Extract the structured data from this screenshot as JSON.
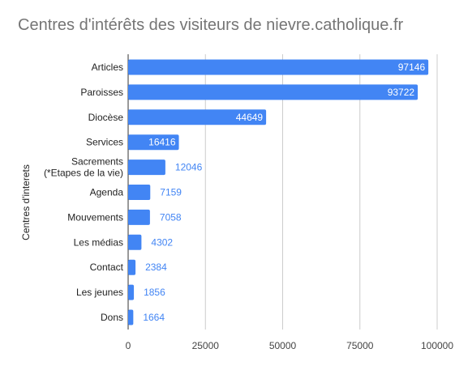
{
  "chart_data": {
    "type": "bar",
    "orientation": "horizontal",
    "title": "Centres d'intérêts des visiteurs de nievre.catholique.fr",
    "ylabel": "Centres d'interets",
    "xlabel": "",
    "categories": [
      [
        "Articles"
      ],
      [
        "Paroisses"
      ],
      [
        "Diocèse"
      ],
      [
        "Services"
      ],
      [
        "Sacrements",
        "(*Etapes de la vie)"
      ],
      [
        "Agenda"
      ],
      [
        "Mouvements"
      ],
      [
        "Les médias"
      ],
      [
        "Contact"
      ],
      [
        "Les jeunes"
      ],
      [
        "Dons"
      ]
    ],
    "values": [
      97146,
      93722,
      44649,
      16416,
      12046,
      7159,
      7058,
      4302,
      2384,
      1856,
      1664
    ],
    "xlim": [
      0,
      100000
    ],
    "xticks": [
      "0",
      "25000",
      "50000",
      "75000",
      "100000"
    ],
    "grid": true,
    "legend": "none",
    "colors": {
      "bar": "#4285f4",
      "label_inside": "#ffffff",
      "label_outside": "#4285f4",
      "grid": "#cccccc",
      "axis": "#333333"
    }
  }
}
